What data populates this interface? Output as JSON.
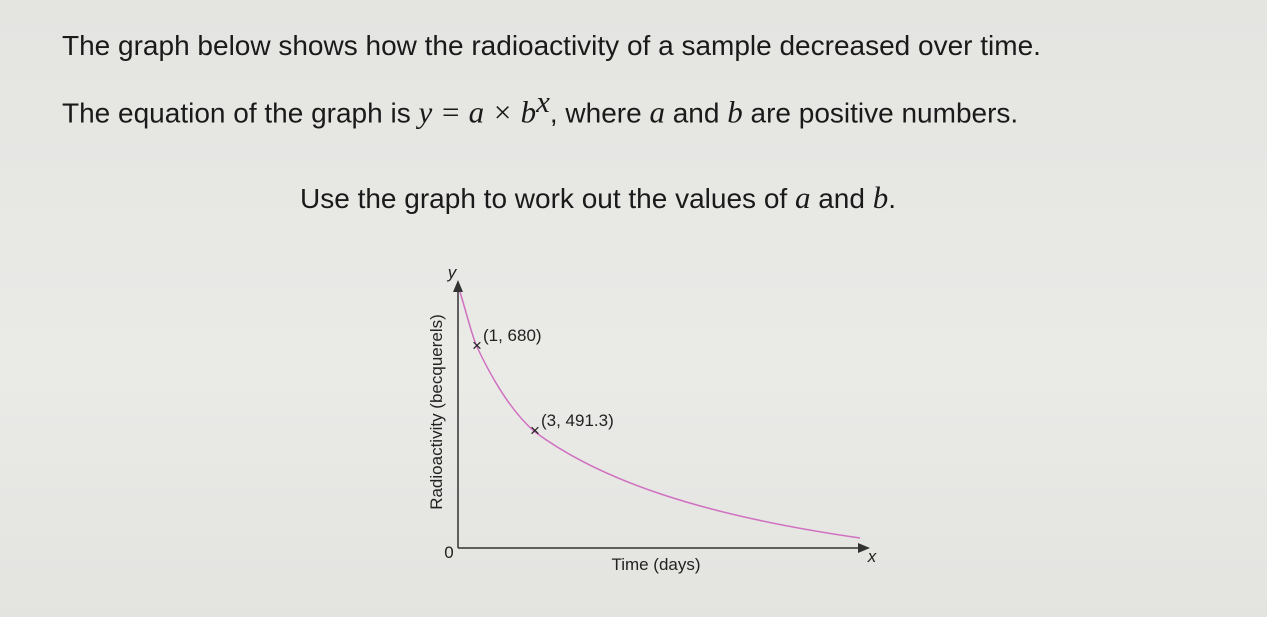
{
  "question": {
    "line1": "The graph below shows how the radioactivity of a sample decreased over time.",
    "line2": {
      "before": "The equation of the graph is",
      "equation": "y = a × b",
      "exponent": "x",
      "after": ", where",
      "var_a": "a",
      "and": "and",
      "var_b": "b",
      "end": "are positive numbers."
    },
    "instruction": {
      "before": "Use the graph to work out the values of",
      "var_a": "a",
      "and": "and",
      "var_b": "b",
      "end": "."
    }
  },
  "graph": {
    "y_axis_symbol": "y",
    "x_axis_symbol": "x",
    "origin": "0",
    "y_label": "Radioactivity (becquerels)",
    "x_label": "Time (days)",
    "points": [
      {
        "label": "(1, 680)",
        "x": 1,
        "y": 680
      },
      {
        "label": "(3, 491.3)",
        "x": 3,
        "y": 491.3
      }
    ]
  }
}
